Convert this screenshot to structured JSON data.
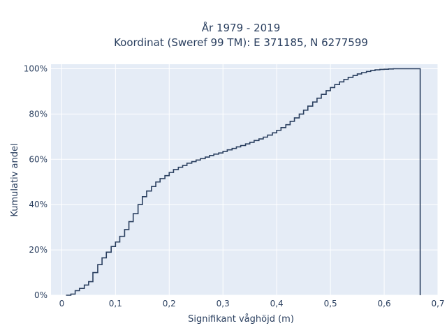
{
  "chart_data": {
    "type": "line",
    "line_shape": "step",
    "title": [
      "År 1979 - 2019",
      "Koordinat (Sweref 99 TM): E 371185, N 6277599"
    ],
    "xlabel": "Signifikant våghöjd (m)",
    "ylabel": "Kumulativ andel",
    "xlim": [
      -0.02,
      0.7
    ],
    "ylim": [
      0,
      1.02
    ],
    "xticks": [
      0,
      0.1,
      0.2,
      0.3,
      0.4,
      0.5,
      0.6,
      0.7
    ],
    "xtick_labels": [
      "0",
      "0,1",
      "0,2",
      "0,3",
      "0,4",
      "0,5",
      "0,6",
      "0,7"
    ],
    "yticks": [
      0,
      0.2,
      0.4,
      0.6,
      0.8,
      1.0
    ],
    "ytick_labels": [
      "0%",
      "20%",
      "40%",
      "60%",
      "80%",
      "100%"
    ],
    "grid": true,
    "plot_background": "#e5ecf6",
    "grid_color": "#ffffff",
    "line_color": "#2a3f5f",
    "series": [
      {
        "x": [
          0.008,
          0.017,
          0.025,
          0.033,
          0.042,
          0.05,
          0.058,
          0.067,
          0.075,
          0.083,
          0.092,
          0.1,
          0.108,
          0.117,
          0.125,
          0.133,
          0.142,
          0.15,
          0.158,
          0.167,
          0.175,
          0.183,
          0.192,
          0.2,
          0.208,
          0.217,
          0.225,
          0.233,
          0.242,
          0.25,
          0.258,
          0.267,
          0.275,
          0.283,
          0.292,
          0.3,
          0.308,
          0.317,
          0.325,
          0.333,
          0.342,
          0.35,
          0.358,
          0.367,
          0.375,
          0.383,
          0.392,
          0.4,
          0.408,
          0.417,
          0.425,
          0.433,
          0.442,
          0.45,
          0.458,
          0.467,
          0.475,
          0.483,
          0.492,
          0.5,
          0.508,
          0.517,
          0.525,
          0.533,
          0.542,
          0.55,
          0.558,
          0.567,
          0.575,
          0.583,
          0.592,
          0.6,
          0.608,
          0.617,
          0.625,
          0.633,
          0.642,
          0.65,
          0.658,
          0.667,
          0.667
        ],
        "y": [
          0.0,
          0.005,
          0.02,
          0.03,
          0.045,
          0.06,
          0.1,
          0.135,
          0.165,
          0.19,
          0.215,
          0.235,
          0.26,
          0.29,
          0.325,
          0.36,
          0.4,
          0.435,
          0.46,
          0.48,
          0.5,
          0.515,
          0.528,
          0.542,
          0.555,
          0.565,
          0.573,
          0.583,
          0.59,
          0.597,
          0.603,
          0.61,
          0.617,
          0.623,
          0.628,
          0.635,
          0.642,
          0.648,
          0.655,
          0.661,
          0.668,
          0.675,
          0.683,
          0.69,
          0.698,
          0.707,
          0.717,
          0.728,
          0.74,
          0.753,
          0.768,
          0.783,
          0.8,
          0.817,
          0.835,
          0.853,
          0.87,
          0.887,
          0.903,
          0.917,
          0.93,
          0.942,
          0.953,
          0.962,
          0.97,
          0.977,
          0.983,
          0.988,
          0.992,
          0.995,
          0.997,
          0.998,
          0.999,
          1.0,
          1.0,
          1.0,
          1.0,
          1.0,
          1.0,
          1.0,
          0.0
        ]
      }
    ]
  }
}
